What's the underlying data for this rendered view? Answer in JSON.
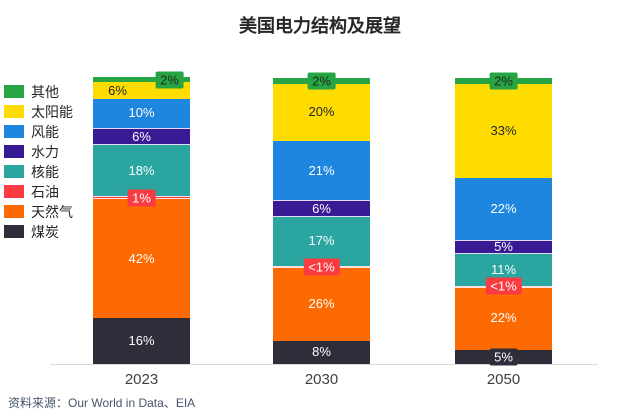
{
  "chart_data": {
    "type": "bar",
    "stacked": true,
    "title": "美国电力结构及展望",
    "categories": [
      "2023",
      "2030",
      "2050"
    ],
    "unit": "%",
    "legend_position": "left",
    "legend_order": "top-of-stack-first",
    "grid": false,
    "x_axis_line_color": "#d9d9d9",
    "series": [
      {
        "name": "煤炭",
        "color": "#2e2e3a",
        "values": [
          16,
          8,
          5
        ],
        "labels": [
          "16%",
          "8%",
          "5%"
        ],
        "label_color": "#ffffff",
        "chip": [
          false,
          false,
          true
        ]
      },
      {
        "name": "天然气",
        "color": "#fd6a02",
        "values": [
          42,
          26,
          22
        ],
        "labels": [
          "42%",
          "26%",
          "22%"
        ],
        "label_color": "#ffffff"
      },
      {
        "name": "石油",
        "color": "#fa3b42",
        "values": [
          1,
          0.5,
          0.5
        ],
        "labels": [
          "1%",
          "<1%",
          "<1%"
        ],
        "label_color": "#ffffff",
        "chip": [
          true,
          true,
          true
        ],
        "white_border": true
      },
      {
        "name": "核能",
        "color": "#2ba5a0",
        "values": [
          18,
          17,
          11
        ],
        "labels": [
          "18%",
          "17%",
          "11%"
        ],
        "label_color": "#ffffff"
      },
      {
        "name": "水力",
        "color": "#371a94",
        "values": [
          6,
          6,
          5
        ],
        "labels": [
          "6%",
          "6%",
          "5%"
        ],
        "label_color": "#ffffff",
        "white_border": true
      },
      {
        "name": "风能",
        "color": "#1e86de",
        "values": [
          10,
          21,
          22
        ],
        "labels": [
          "10%",
          "21%",
          "22%"
        ],
        "label_color": "#ffffff"
      },
      {
        "name": "太阳能",
        "color": "#ffdc00",
        "values": [
          6,
          20,
          33
        ],
        "labels": [
          "6%",
          "20%",
          "33%"
        ],
        "label_color": "#262626",
        "label_dx": [
          -24,
          0,
          0
        ]
      },
      {
        "name": "其他",
        "color": "#27a443",
        "values": [
          2,
          2,
          2
        ],
        "labels": [
          "2%",
          "2%",
          "2%"
        ],
        "label_color": "#1f2a1f",
        "chip": [
          true,
          true,
          true
        ],
        "label_dx": [
          28,
          0,
          0
        ]
      }
    ],
    "source": "资料来源：Our World in Data、EIA"
  }
}
